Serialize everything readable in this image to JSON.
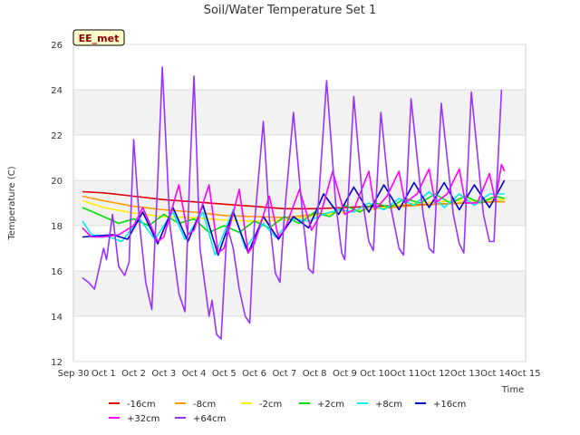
{
  "chart_data": {
    "type": "line",
    "title": "Soil/Water Temperature Set 1",
    "xlabel": "Time",
    "ylabel": "Temperature (C)",
    "badge": "EE_met",
    "xlim": [
      0,
      15
    ],
    "ylim": [
      12,
      26
    ],
    "x_tick_labels": [
      "Sep 30",
      "Oct 1",
      "Oct 2",
      "Oct 3",
      "Oct 4",
      "Oct 5",
      "Oct 6",
      "Oct 7",
      "Oct 8",
      "Oct 9",
      "Oct 10",
      "Oct 11",
      "Oct 12",
      "Oct 13",
      "Oct 14",
      "Oct 15"
    ],
    "y_ticks": [
      12,
      14,
      16,
      18,
      20,
      22,
      24,
      26
    ],
    "shaded_bands": [
      [
        14,
        16
      ],
      [
        18,
        20
      ],
      [
        22,
        24
      ]
    ],
    "legend_position": "bottom",
    "series": [
      {
        "name": "-16cm",
        "color": "#dd0000",
        "x": [
          0.3,
          1,
          2,
          3,
          4,
          5,
          6,
          7,
          8,
          9,
          10,
          11,
          12,
          13,
          14,
          14.3
        ],
        "y": [
          19.5,
          19.45,
          19.3,
          19.15,
          19.05,
          18.95,
          18.85,
          18.75,
          18.75,
          18.8,
          18.85,
          18.9,
          18.95,
          19.0,
          19.05,
          19.05
        ]
      },
      {
        "name": "-8cm",
        "color": "#ff9900",
        "x": [
          0.3,
          1,
          2,
          3,
          4,
          5,
          6,
          7,
          8,
          9,
          10,
          11,
          12,
          13,
          14,
          14.3
        ],
        "y": [
          19.3,
          19.1,
          18.85,
          18.7,
          18.6,
          18.45,
          18.4,
          18.35,
          18.5,
          18.6,
          18.75,
          18.85,
          18.95,
          19.0,
          19.05,
          19.05
        ]
      },
      {
        "name": "-2cm",
        "color": "#ffee00",
        "x": [
          0.3,
          1,
          2,
          3,
          4,
          5,
          6,
          7,
          8,
          9,
          10,
          11,
          12,
          13,
          14,
          14.3
        ],
        "y": [
          19.1,
          18.8,
          18.55,
          18.4,
          18.35,
          18.25,
          18.2,
          18.25,
          18.45,
          18.6,
          18.75,
          18.95,
          19.05,
          19.1,
          19.15,
          19.15
        ]
      },
      {
        "name": "+2cm",
        "color": "#00dd00",
        "x": [
          0.3,
          1,
          1.5,
          2,
          2.5,
          3,
          3.5,
          4,
          4.5,
          5,
          5.5,
          6,
          6.5,
          7,
          7.5,
          8,
          8.5,
          9,
          9.5,
          10,
          10.5,
          11,
          11.5,
          12,
          12.5,
          13,
          13.5,
          14,
          14.3
        ],
        "y": [
          18.8,
          18.4,
          18.1,
          18.3,
          18.0,
          18.5,
          18.1,
          18.3,
          17.7,
          18.0,
          17.7,
          18.2,
          17.9,
          18.4,
          18.1,
          18.6,
          18.4,
          18.9,
          18.6,
          19.0,
          18.8,
          19.2,
          19.0,
          19.4,
          19.0,
          19.3,
          19.0,
          19.3,
          19.2
        ]
      },
      {
        "name": "+8cm",
        "color": "#00eeee",
        "x": [
          0.3,
          0.6,
          1.2,
          1.6,
          2.2,
          2.7,
          3.3,
          3.7,
          4.3,
          4.7,
          5.3,
          5.7,
          6.3,
          6.7,
          7.3,
          7.8,
          8.3,
          8.8,
          9.3,
          9.8,
          10.3,
          10.8,
          11.3,
          11.8,
          12.3,
          12.8,
          13.3,
          13.8,
          14.3
        ],
        "y": [
          18.2,
          17.6,
          17.5,
          17.3,
          18.3,
          17.4,
          18.6,
          17.4,
          18.6,
          16.7,
          18.7,
          17.0,
          18.1,
          17.5,
          18.3,
          18.2,
          18.5,
          18.7,
          18.6,
          19.0,
          18.7,
          19.2,
          18.9,
          19.5,
          18.8,
          19.4,
          18.9,
          19.4,
          19.4
        ]
      },
      {
        "name": "+16cm",
        "color": "#0000cc",
        "x": [
          0.3,
          1.3,
          1.8,
          2.3,
          2.8,
          3.3,
          3.8,
          4.3,
          4.8,
          5.3,
          5.8,
          6.3,
          6.8,
          7.3,
          7.8,
          8.3,
          8.8,
          9.3,
          9.8,
          10.3,
          10.8,
          11.3,
          11.8,
          12.3,
          12.8,
          13.3,
          13.8,
          14.3
        ],
        "y": [
          17.5,
          17.6,
          17.4,
          18.6,
          17.2,
          18.8,
          17.3,
          18.9,
          16.7,
          18.6,
          16.8,
          18.4,
          17.4,
          18.4,
          17.9,
          19.4,
          18.5,
          19.7,
          18.6,
          19.8,
          18.7,
          19.9,
          18.8,
          19.9,
          18.7,
          19.8,
          18.8,
          20.0
        ]
      },
      {
        "name": "+32cm",
        "color": "#ff00ff",
        "x": [
          0.3,
          0.6,
          1.0,
          1.5,
          2.0,
          2.3,
          2.8,
          3.0,
          3.5,
          3.8,
          4.0,
          4.5,
          4.8,
          5.0,
          5.5,
          5.8,
          6.0,
          6.5,
          6.8,
          7.0,
          7.5,
          7.9,
          8.2,
          8.6,
          9.0,
          9.3,
          9.8,
          10.0,
          10.4,
          10.8,
          11.0,
          11.4,
          11.8,
          12.0,
          12.4,
          12.8,
          13.0,
          13.4,
          13.8,
          14.0,
          14.2,
          14.3
        ],
        "y": [
          17.9,
          17.5,
          17.5,
          17.6,
          18.0,
          18.8,
          17.3,
          17.5,
          19.8,
          17.6,
          17.8,
          19.8,
          16.8,
          17.0,
          19.6,
          16.8,
          17.2,
          19.3,
          17.5,
          17.8,
          19.6,
          17.8,
          18.5,
          20.4,
          18.5,
          18.7,
          20.4,
          18.7,
          19.3,
          20.4,
          19.0,
          19.4,
          20.5,
          19.0,
          19.4,
          20.5,
          19.0,
          19.0,
          20.3,
          19.1,
          20.7,
          20.4
        ]
      },
      {
        "name": "+64cm",
        "color": "#9933ff",
        "x": [
          0.3,
          0.5,
          0.7,
          1.0,
          1.1,
          1.3,
          1.5,
          1.7,
          1.85,
          2.0,
          2.2,
          2.4,
          2.6,
          2.8,
          2.95,
          3.2,
          3.5,
          3.7,
          3.85,
          4.0,
          4.2,
          4.5,
          4.6,
          4.75,
          4.9,
          5.1,
          5.3,
          5.5,
          5.7,
          5.85,
          6.0,
          6.3,
          6.5,
          6.7,
          6.85,
          7.0,
          7.3,
          7.6,
          7.8,
          7.95,
          8.1,
          8.4,
          8.7,
          8.9,
          9.0,
          9.3,
          9.6,
          9.8,
          9.95,
          10.2,
          10.5,
          10.8,
          10.95,
          11.2,
          11.6,
          11.8,
          11.95,
          12.2,
          12.6,
          12.8,
          12.95,
          13.2,
          13.6,
          13.8,
          13.95,
          14.2
        ],
        "y": [
          15.7,
          15.5,
          15.2,
          17.0,
          16.5,
          18.5,
          16.2,
          15.8,
          16.4,
          21.8,
          18.0,
          15.5,
          14.3,
          20.0,
          25.0,
          18.0,
          15.0,
          14.2,
          20.0,
          24.6,
          17.0,
          14.0,
          14.7,
          13.2,
          13.0,
          18.0,
          17.0,
          15.2,
          14.0,
          13.7,
          18.0,
          22.6,
          18.3,
          15.9,
          15.5,
          18.5,
          23.0,
          18.5,
          16.1,
          15.9,
          18.5,
          24.4,
          19.0,
          16.8,
          16.5,
          23.7,
          19.0,
          17.3,
          16.9,
          23.0,
          19.0,
          17.0,
          16.7,
          23.6,
          18.5,
          17.0,
          16.8,
          23.4,
          18.5,
          17.2,
          16.8,
          23.9,
          18.5,
          17.3,
          17.3,
          24.0
        ]
      }
    ]
  }
}
